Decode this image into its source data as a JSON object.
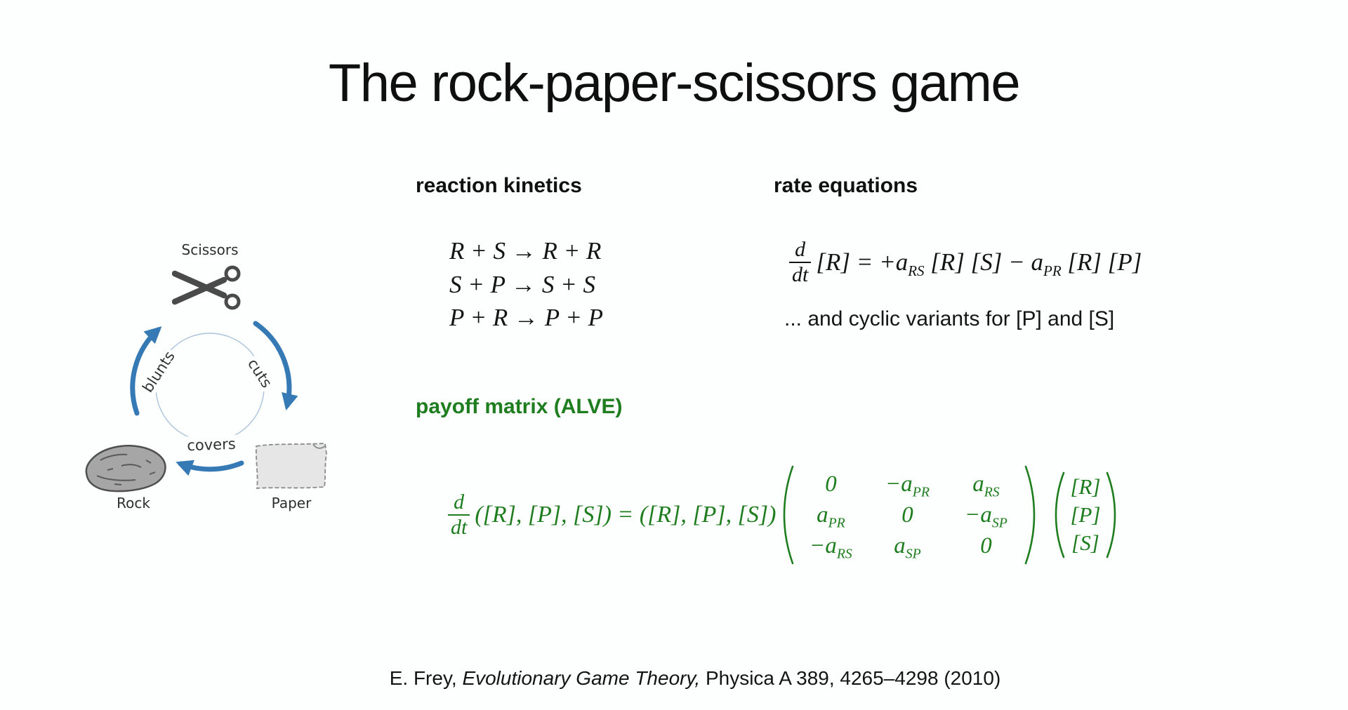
{
  "colors": {
    "background": "#fdfefe",
    "text": "#111111",
    "accent_green": "#1e7d1e",
    "arrow_blue": "#3579b5",
    "circle_blue": "#a9c3dc",
    "icon_gray": "#4a4a4a"
  },
  "slide": {
    "title": "The rock-paper-scissors game"
  },
  "diagram": {
    "labels": {
      "scissors": "Scissors",
      "rock": "Rock",
      "paper": "Paper"
    },
    "arrows": {
      "blunts": "blunts",
      "cuts": "cuts",
      "covers": "covers"
    }
  },
  "kinetics": {
    "heading": "reaction kinetics",
    "equations": [
      "R + S → R + R",
      "S + P → S + S",
      "P + R → P + P"
    ]
  },
  "rates": {
    "heading": "rate equations",
    "frac": {
      "num": "d",
      "den": "dt"
    },
    "body": [
      "[R] = +a",
      {
        "sub": "RS"
      },
      " [R] [S] − a",
      {
        "sub": "PR"
      },
      " [R] [P]"
    ],
    "note": "... and cyclic variants for [P] and [S]"
  },
  "payoff": {
    "heading": "payoff matrix (ALVE)",
    "frac": {
      "num": "d",
      "den": "dt"
    },
    "lhs": "([R], [P], [S]) = ([R], [P], [S])",
    "matrix": [
      [
        {
          "m": "0"
        },
        {
          "m": "−a",
          "s": "PR"
        },
        {
          "m": "a",
          "s": "RS"
        }
      ],
      [
        {
          "m": "a",
          "s": "PR"
        },
        {
          "m": "0"
        },
        {
          "m": "−a",
          "s": "SP"
        }
      ],
      [
        {
          "m": "−a",
          "s": "RS"
        },
        {
          "m": "a",
          "s": "SP"
        },
        {
          "m": "0"
        }
      ]
    ],
    "vector": [
      "[R]",
      "[P]",
      "[S]"
    ]
  },
  "citation": {
    "pre": "E. Frey, ",
    "italic": "Evolutionary Game Theory,",
    "post": " Physica A 389, 4265–4298 (2010)"
  }
}
